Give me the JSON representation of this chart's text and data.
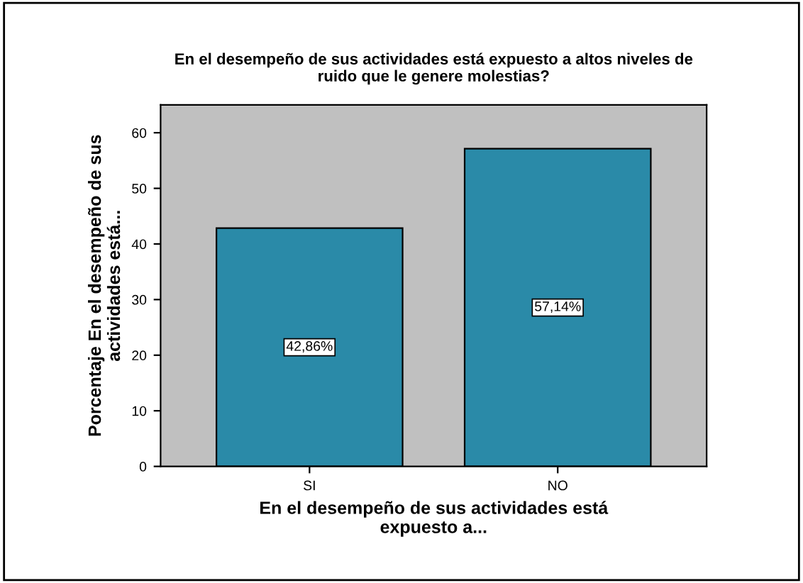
{
  "chart_data": {
    "type": "bar",
    "title": "En el desempeño de sus actividades está expuesto a altos niveles de\nruido que le genere molestias?",
    "xlabel": "En el desempeño de sus actividades está\nexpuesto a...",
    "ylabel": "Porcentaje En el desempeño de sus\nactividades está...",
    "categories": [
      "SI",
      "NO"
    ],
    "values": [
      42.86,
      57.14
    ],
    "value_labels": [
      "42,86%",
      "57,14%"
    ],
    "color": "#2a8aa8",
    "ylim": [
      0,
      65
    ],
    "yticks": [
      0,
      10,
      20,
      30,
      40,
      50,
      60
    ],
    "grid": false
  }
}
